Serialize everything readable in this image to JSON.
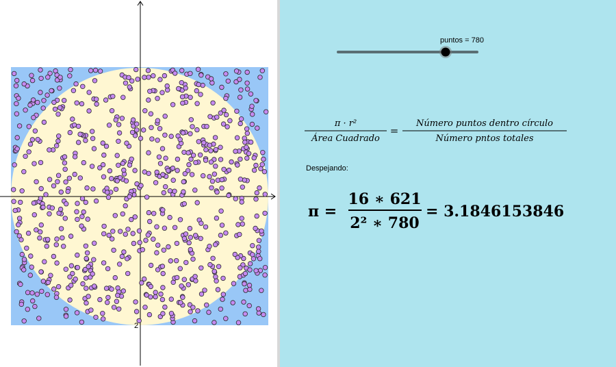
{
  "slider": {
    "label": "puntos = 780",
    "value": 780
  },
  "axis_label": "2",
  "formula": {
    "lhs_num": "π · r²",
    "lhs_den": "Área Cuadrado",
    "equals": "=",
    "rhs_num": "Número puntos dentro círculo",
    "rhs_den": "Número pntos totales"
  },
  "note": "Despejando:",
  "result": {
    "symbol": "π =",
    "num": "16 ∗ 621",
    "den": "2² ∗ 780",
    "value": "= 3.1846153846"
  }
}
